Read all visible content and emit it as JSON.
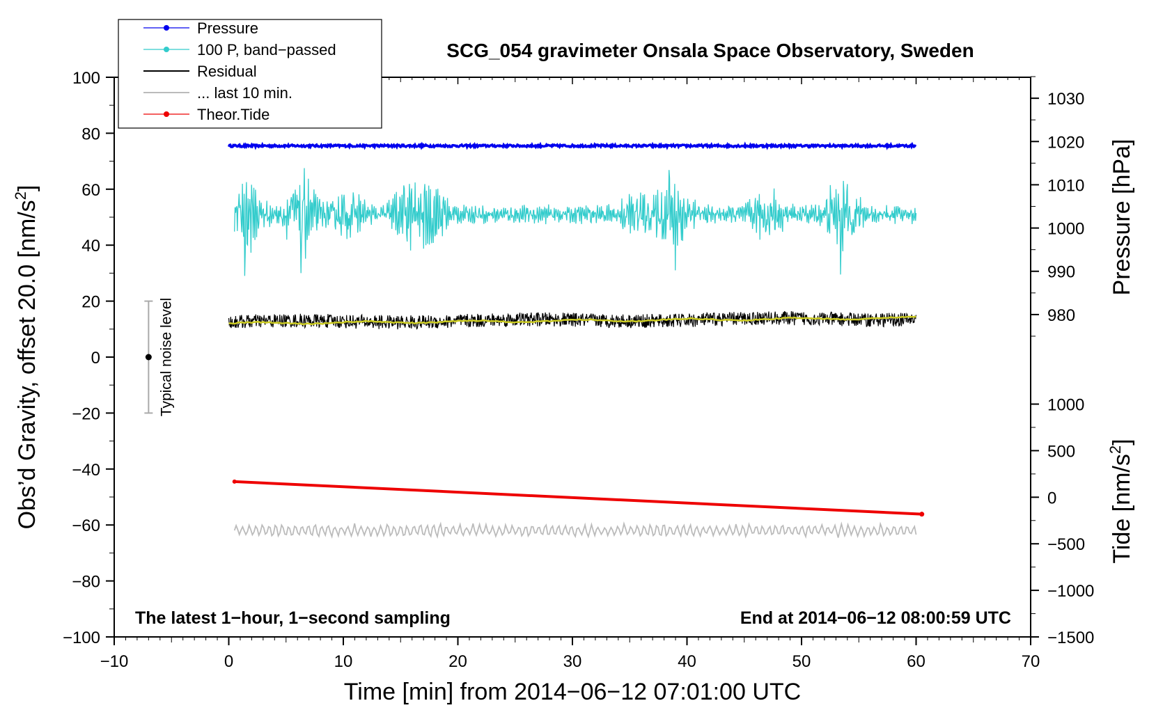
{
  "chart_data": {
    "type": "line",
    "title": "SCG_054 gravimeter Onsala Space Observatory, Sweden",
    "xlabel": "Time [min] from 2014−06−12 07:01:00 UTC",
    "ylabel_left": "Obs’d Gravity, offset 20.0 [nm/s",
    "ylabel_left_sup": "2",
    "ylabel_left_end": "]",
    "ylabel_pressure": "Pressure [hPa]",
    "ylabel_tide": "Tide [nm/s",
    "ylabel_tide_sup": "2",
    "ylabel_tide_end": "]",
    "xlim": [
      -10,
      70
    ],
    "ylim": [
      -100,
      100
    ],
    "x_ticks": [
      -10,
      0,
      10,
      20,
      30,
      40,
      50,
      60,
      70
    ],
    "x_tick_labels": [
      "−10",
      "0",
      "10",
      "20",
      "30",
      "40",
      "50",
      "60",
      "70"
    ],
    "y_ticks": [
      -100,
      -80,
      -60,
      -40,
      -20,
      0,
      20,
      40,
      60,
      80,
      100
    ],
    "y_tick_labels": [
      "−100",
      "−80",
      "−60",
      "−40",
      "−20",
      "0",
      "20",
      "40",
      "60",
      "80",
      "100"
    ],
    "pressure_ticks": [
      980,
      990,
      1000,
      1010,
      1020,
      1030
    ],
    "pressure_tick_labels": [
      "980",
      "990",
      "1000",
      "1010",
      "1020",
      "1030"
    ],
    "pressure_axis_map": {
      "value_a": 980,
      "y_a": 15.2,
      "value_b": 1030,
      "y_b": 92.5
    },
    "tide_ticks": [
      -1500,
      -1000,
      -500,
      0,
      500,
      1000
    ],
    "tide_tick_labels": [
      "−1500",
      "−1000",
      "−500",
      "0",
      "500",
      "1000"
    ],
    "tide_axis_map": {
      "value_a": -1500,
      "y_a": -100,
      "value_b": 1000,
      "y_b": -16.8
    },
    "grid": false,
    "legend_position": "top-left",
    "annotations": {
      "bottom_left": "The latest 1−hour, 1−second sampling",
      "bottom_right": "End at 2014−06−12 08:00:59 UTC"
    },
    "noise_bar": {
      "label": "Typical noise level",
      "x": -7,
      "center": 0,
      "low": -20,
      "high": 20
    },
    "series": [
      {
        "name": "Pressure",
        "color": "#0000ee",
        "kind": "pressure",
        "x_range": [
          0,
          60
        ],
        "center": 75.5,
        "amplitude": 0.4
      },
      {
        "name": "100 P, band−passed",
        "color": "#33cccc",
        "kind": "bandpassed",
        "x_range": [
          0.5,
          60
        ],
        "center": 51,
        "bursts": [
          {
            "x": 1.5,
            "amp": 11
          },
          {
            "x": 6.3,
            "amp": 12
          },
          {
            "x": 10.5,
            "amp": 6
          },
          {
            "x": 15.5,
            "amp": 8
          },
          {
            "x": 17.8,
            "amp": 9
          },
          {
            "x": 35.5,
            "amp": 6
          },
          {
            "x": 38.8,
            "amp": 13
          },
          {
            "x": 47.0,
            "amp": 7
          },
          {
            "x": 53.5,
            "amp": 11
          }
        ],
        "peaks": [
          {
            "x": 1.4,
            "y": 29
          },
          {
            "x": 6.2,
            "y": 61.5
          },
          {
            "x": 6.3,
            "y": 30
          },
          {
            "x": 38.5,
            "y": 64
          },
          {
            "x": 39.0,
            "y": 31
          },
          {
            "x": 53.4,
            "y": 29.5
          },
          {
            "x": 53.0,
            "y": 60
          }
        ]
      },
      {
        "name": "Residual",
        "color": "#000000",
        "kind": "residual",
        "x_range": [
          0,
          60
        ],
        "start": 12.5,
        "end": 13.8,
        "amplitude": 2.5
      },
      {
        "name": "... last 10 min.",
        "color": "#bbbbbb",
        "kind": "last10",
        "x_range": [
          0.5,
          60
        ],
        "center": -62,
        "amplitude": 1.8
      },
      {
        "name": "Theor.Tide",
        "color": "#ee0000",
        "kind": "tide",
        "x": [
          0.5,
          60.5
        ],
        "tide_values": [
          168,
          -182
        ]
      },
      {
        "name": "",
        "color": "#cccc22",
        "kind": "smooth",
        "x_range": [
          0,
          60
        ],
        "start": 12,
        "end": 14
      }
    ]
  }
}
